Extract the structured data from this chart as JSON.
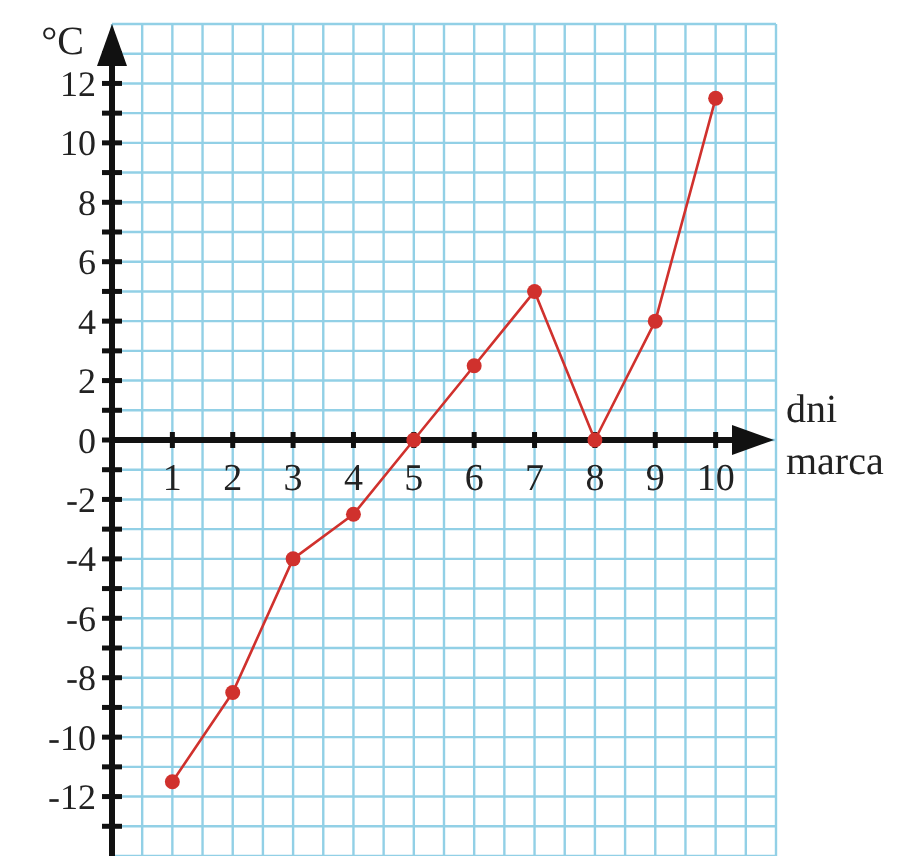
{
  "chart_data": {
    "type": "line",
    "xlabel": "dni marca",
    "ylabel": "°C",
    "x": [
      1,
      2,
      3,
      4,
      5,
      6,
      7,
      8,
      9,
      10
    ],
    "series": [
      {
        "color": "#d0312d",
        "values": [
          -11.5,
          -8.5,
          -4,
          -2.5,
          0,
          2.5,
          5,
          0,
          4,
          11.5
        ]
      }
    ],
    "xlim": [
      0,
      11
    ],
    "ylim": [
      -14,
      14
    ],
    "xticks": [
      1,
      2,
      3,
      4,
      5,
      6,
      7,
      8,
      9,
      10
    ],
    "yticks": [
      {
        "value": -13,
        "label": null
      },
      -12,
      {
        "value": -11,
        "label": null
      },
      -10,
      {
        "value": -9,
        "label": null
      },
      -8,
      {
        "value": -7,
        "label": null
      },
      -6,
      {
        "value": -5,
        "label": null
      },
      -4,
      {
        "value": -3,
        "label": null
      },
      -2,
      {
        "value": -1,
        "label": null
      },
      0,
      {
        "value": 1,
        "label": null
      },
      2,
      {
        "value": 3,
        "label": null
      },
      4,
      {
        "value": 5,
        "label": null
      },
      6,
      {
        "value": 7,
        "label": null
      },
      8,
      {
        "value": 9,
        "label": null
      },
      10,
      {
        "value": 11,
        "label": null
      },
      12,
      {
        "value": 13,
        "label": null
      }
    ],
    "grid": true,
    "marker": "circle",
    "line_style": "solid"
  }
}
